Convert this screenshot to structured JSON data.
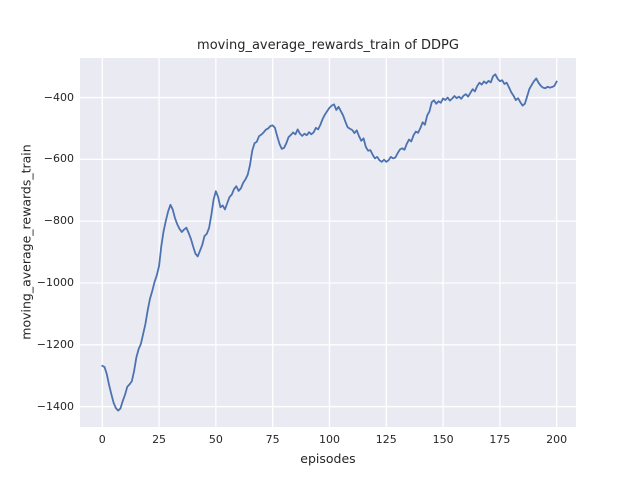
{
  "figure": {
    "title": "moving_average_rewards_train of DDPG",
    "xlabel": "episodes",
    "ylabel": "moving_average_rewards_train"
  },
  "chart_data": {
    "type": "line",
    "title": "moving_average_rewards_train of DDPG",
    "xlabel": "episodes",
    "ylabel": "moving_average_rewards_train",
    "grid": true,
    "legend_position": "none",
    "plot_bg_color": "#EAEAF2",
    "grid_color": "#FFFFFF",
    "line_color": "#4C72B0",
    "text_color": "#262626",
    "xlim": [
      -9.8,
      208.5
    ],
    "ylim": [
      -1466,
      -272
    ],
    "xticks": [
      0,
      25,
      50,
      75,
      100,
      125,
      150,
      175,
      200
    ],
    "yticks": [
      -400,
      -600,
      -800,
      -1000,
      -1200,
      -1400
    ],
    "series": [
      {
        "name": "moving_average_rewards_train",
        "x_start": 0,
        "x_step": 1,
        "values": [
          -1268,
          -1272,
          -1295,
          -1330,
          -1360,
          -1388,
          -1405,
          -1413,
          -1406,
          -1382,
          -1362,
          -1336,
          -1328,
          -1318,
          -1285,
          -1241,
          -1214,
          -1197,
          -1165,
          -1132,
          -1088,
          -1051,
          -1026,
          -997,
          -975,
          -945,
          -880,
          -832,
          -798,
          -768,
          -747,
          -762,
          -790,
          -810,
          -825,
          -835,
          -827,
          -821,
          -838,
          -857,
          -882,
          -905,
          -914,
          -896,
          -877,
          -848,
          -841,
          -822,
          -780,
          -730,
          -703,
          -722,
          -755,
          -749,
          -762,
          -742,
          -722,
          -714,
          -696,
          -687,
          -702,
          -694,
          -676,
          -665,
          -650,
          -619,
          -572,
          -548,
          -543,
          -525,
          -520,
          -513,
          -504,
          -500,
          -492,
          -490,
          -498,
          -525,
          -550,
          -566,
          -563,
          -548,
          -528,
          -521,
          -513,
          -519,
          -503,
          -517,
          -524,
          -517,
          -522,
          -512,
          -519,
          -513,
          -498,
          -503,
          -488,
          -469,
          -455,
          -444,
          -433,
          -426,
          -422,
          -440,
          -430,
          -444,
          -458,
          -478,
          -496,
          -501,
          -505,
          -515,
          -506,
          -525,
          -540,
          -532,
          -560,
          -572,
          -570,
          -585,
          -597,
          -592,
          -603,
          -608,
          -601,
          -608,
          -603,
          -592,
          -597,
          -594,
          -580,
          -568,
          -564,
          -569,
          -550,
          -536,
          -542,
          -522,
          -510,
          -514,
          -499,
          -480,
          -488,
          -458,
          -445,
          -415,
          -409,
          -420,
          -412,
          -417,
          -403,
          -408,
          -400,
          -410,
          -403,
          -395,
          -402,
          -397,
          -404,
          -394,
          -389,
          -397,
          -385,
          -373,
          -380,
          -363,
          -352,
          -358,
          -348,
          -354,
          -346,
          -351,
          -331,
          -325,
          -339,
          -347,
          -344,
          -356,
          -352,
          -367,
          -383,
          -394,
          -408,
          -402,
          -415,
          -426,
          -420,
          -396,
          -372,
          -359,
          -347,
          -338,
          -352,
          -362,
          -368,
          -370,
          -365,
          -368,
          -366,
          -362,
          -348
        ]
      }
    ]
  }
}
